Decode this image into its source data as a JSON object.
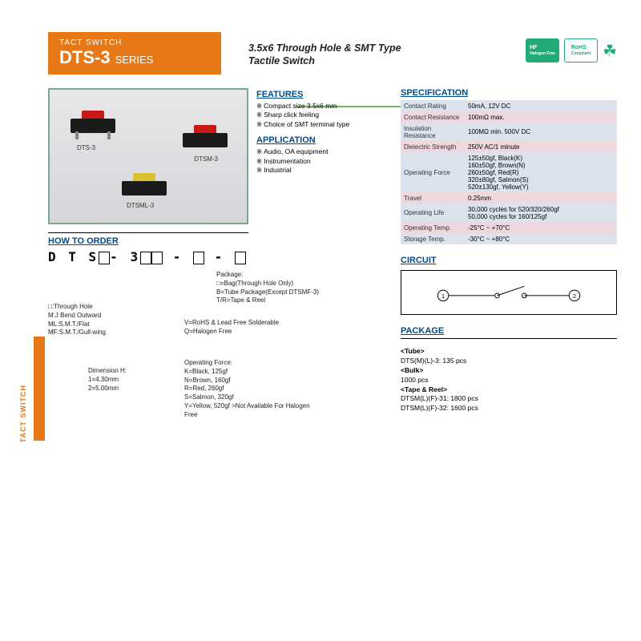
{
  "header": {
    "category": "TACT SWITCH",
    "series": "DTS-3",
    "series_suffix": "SERIES"
  },
  "subtitle": "3.5x6 Through Hole & SMT Type\nTactile Switch",
  "logos": {
    "logo1": "HF",
    "logo1_sub": "Halogen Free",
    "logo2": "RoHS",
    "logo2_sub": "Compliant"
  },
  "image_labels": {
    "a": "DTS-3",
    "b": "DTSM-3",
    "c": "DTSML-3"
  },
  "features": {
    "title": "FEATURES",
    "items": [
      "Compact size 3.5x6 mm",
      "Sharp click feeling",
      "Choice of SMT terminal type"
    ]
  },
  "application": {
    "title": "APPLICATION",
    "items": [
      "Audio, OA equipment",
      "Instrumentation",
      "Industrial"
    ]
  },
  "order": {
    "title": "HOW TO ORDER",
    "code_prefix": "D T S",
    "code_mid": "- 3",
    "mount": {
      "lines": [
        "□:Through Hole",
        "M:J Bend Outward",
        "ML:S.M.T./Flat",
        "MF:S.M.T./Gull-wing"
      ]
    },
    "dim": {
      "title": "Dimension H:",
      "lines": [
        "1=4.30mm",
        "2=5.00mm"
      ]
    },
    "force": {
      "title": "Operating Force:",
      "lines": [
        "K=Black, 125gf",
        "N=Brown, 160gf",
        "R=Red, 260gf",
        "S=Salmon, 320gf",
        "Y=Yellow, 520gf"
      ],
      "note": ">Not Available For Halogen Free"
    },
    "env": {
      "lines": [
        "V=RoHS & Lead Free Solderable",
        "Q=Halogen Free"
      ]
    },
    "pkg": {
      "title": "Package:",
      "lines": [
        "□=Bag(Through Hole Only)",
        "B=Tube Package(Except DTSMF-3)",
        "T/R=Tape & Reel"
      ]
    }
  },
  "spec": {
    "title": "SPECIFICATION",
    "rows": [
      [
        "Contact Rating",
        "50mA, 12V DC"
      ],
      [
        "Contact Resistance",
        "100mΩ max."
      ],
      [
        "Insulation Resistance",
        "100MΩ min. 500V DC"
      ],
      [
        "Dielectric Strength",
        "250V AC/1 minute"
      ],
      [
        "Operating Force",
        "125±50gf, Black(K)\n160±50gf, Brown(N)\n260±50gf, Red(R)\n320±80gf, Salmon(S)\n520±130gf, Yellow(Y)"
      ],
      [
        "Travel",
        "0.25mm"
      ],
      [
        "Operating Life",
        "30,000 cycles for 520/320/260gf\n50,000 cycles for 160/125gf"
      ],
      [
        "Operating Temp.",
        "-25°C ~ +70°C"
      ],
      [
        "Storage Temp.",
        "-30°C ~ +80°C"
      ]
    ]
  },
  "circuit": {
    "title": "CIRCUIT",
    "t1": "1",
    "t2": "2"
  },
  "package": {
    "title": "PACKAGE",
    "tube_h": "<Tube>",
    "tube_l": "DTS(M)(L)-3: 135 pcs",
    "bulk_h": "<Bulk>",
    "bulk_l": "1000 pcs",
    "tr_h": "<Tape & Reel>",
    "tr_l1": "DTSM(L)(F)-31: 1800 pcs",
    "tr_l2": "DTSM(L)(F)-32: 1600 pcs"
  },
  "side_tab": "TACT SWITCH",
  "colors": {
    "orange": "#e67817",
    "blue": "#004b8d",
    "green": "#7ab860",
    "spec_row_a": "#dbe3ee",
    "spec_row_b": "#eed8dd",
    "btn_red": "#c81818",
    "btn_yellow": "#d8c030"
  }
}
